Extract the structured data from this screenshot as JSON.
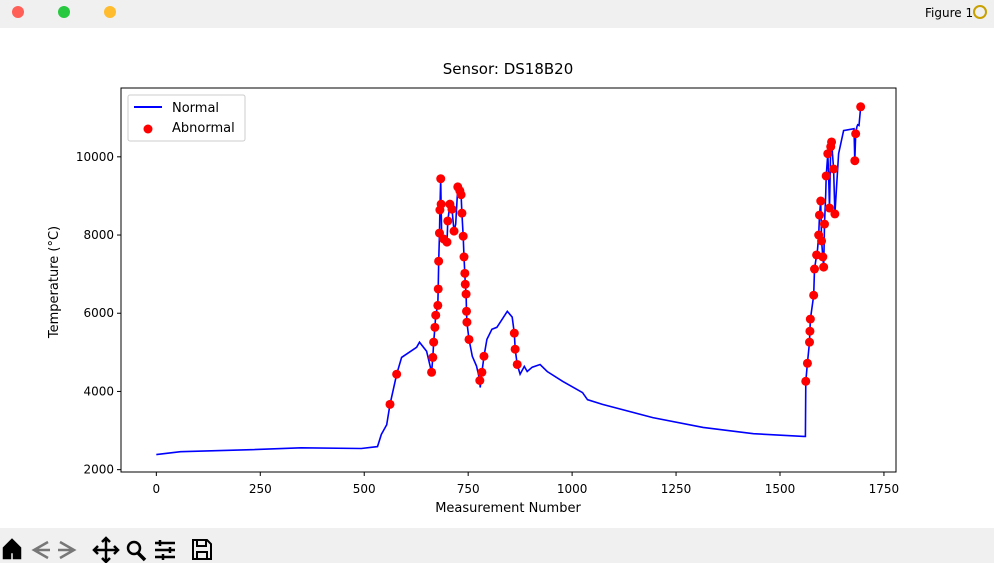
{
  "window": {
    "title": "Figure 1"
  },
  "chart_data": {
    "type": "line",
    "title": "Sensor: DS18B20",
    "x_label": "Measurement Number",
    "y_label": "Temperature (°C)",
    "xlim": [
      -85,
      1779
    ],
    "ylim": [
      1940,
      11760
    ],
    "xticks": [
      0,
      250,
      500,
      750,
      1000,
      1250,
      1500,
      1750
    ],
    "yticks": [
      2000,
      4000,
      6000,
      8000,
      10000
    ],
    "legend": "upper left",
    "series": [
      {
        "name": "Normal",
        "type": "line",
        "color": "#0000ff",
        "x": [
          0,
          58,
          227,
          348,
          493,
          532,
          541,
          554,
          562,
          578,
          590,
          626,
          633,
          650,
          662,
          665,
          667,
          670,
          672,
          677,
          678,
          679,
          681,
          682,
          684,
          685,
          686,
          691,
          699,
          701,
          706,
          711,
          716,
          720,
          725,
          730,
          733,
          735,
          738,
          740,
          742,
          743,
          745,
          746,
          747,
          752,
          760,
          770,
          778,
          779,
          783,
          788,
          795,
          807,
          819,
          832,
          844,
          856,
          861,
          863,
          868,
          875,
          885,
          892,
          904,
          923,
          940,
          977,
          1025,
          1037,
          1073,
          1194,
          1315,
          1436,
          1557,
          1561,
          1562,
          1566,
          1571,
          1572,
          1573,
          1581,
          1583,
          1588,
          1590,
          1593,
          1595,
          1598,
          1600,
          1603,
          1605,
          1607,
          1610,
          1611,
          1615,
          1617,
          1619,
          1622,
          1624,
          1629,
          1632,
          1641,
          1653,
          1678,
          1680,
          1682,
          1685,
          1687,
          1690,
          1694
        ],
        "values": [
          2385,
          2460,
          2510,
          2560,
          2540,
          2590,
          2900,
          3150,
          3670,
          4440,
          4870,
          5130,
          5260,
          5030,
          4490,
          4870,
          5260,
          5640,
          5950,
          6200,
          6620,
          7330,
          8050,
          8640,
          9440,
          8790,
          8100,
          7900,
          7820,
          8360,
          8790,
          8660,
          8100,
          8280,
          9230,
          9130,
          9030,
          8560,
          7970,
          7440,
          7020,
          6740,
          6490,
          6050,
          5770,
          5330,
          4900,
          4650,
          4280,
          4100,
          4490,
          4900,
          5330,
          5590,
          5640,
          5850,
          6050,
          5900,
          5490,
          5080,
          4690,
          4440,
          4640,
          4510,
          4620,
          4690,
          4510,
          4260,
          3970,
          3790,
          3670,
          3330,
          3080,
          2920,
          2850,
          2850,
          4260,
          4720,
          5260,
          5540,
          5850,
          6460,
          7130,
          7490,
          7590,
          8000,
          8510,
          8870,
          7850,
          7440,
          7180,
          8280,
          9030,
          9510,
          10080,
          9540,
          8690,
          10260,
          10380,
          9690,
          8540,
          10080,
          10670,
          10720,
          9900,
          10590,
          10770,
          10820,
          10800,
          11280
        ]
      },
      {
        "name": "Abnormal",
        "type": "scatter",
        "color": "#ff0000",
        "x": [
          562,
          578,
          662,
          665,
          667,
          670,
          672,
          677,
          678,
          679,
          681,
          682,
          684,
          685,
          691,
          699,
          701,
          706,
          711,
          716,
          725,
          730,
          733,
          735,
          738,
          740,
          742,
          743,
          745,
          746,
          747,
          752,
          778,
          783,
          788,
          861,
          863,
          868,
          1562,
          1566,
          1571,
          1572,
          1573,
          1581,
          1583,
          1588,
          1593,
          1595,
          1598,
          1600,
          1603,
          1605,
          1607,
          1611,
          1615,
          1619,
          1622,
          1624,
          1629,
          1632,
          1680,
          1682,
          1694
        ],
        "values": [
          3670,
          4440,
          4490,
          4870,
          5260,
          5640,
          5950,
          6200,
          6620,
          7330,
          8050,
          8640,
          9440,
          8790,
          7900,
          7820,
          8360,
          8790,
          8660,
          8100,
          9230,
          9130,
          9030,
          8560,
          7970,
          7440,
          7020,
          6740,
          6490,
          6050,
          5770,
          5330,
          4280,
          4490,
          4900,
          5490,
          5080,
          4690,
          4260,
          4720,
          5260,
          5540,
          5850,
          6460,
          7130,
          7490,
          8000,
          8510,
          8870,
          7850,
          7440,
          7180,
          8280,
          9510,
          10080,
          8690,
          10260,
          10380,
          9690,
          8540,
          9900,
          10590,
          11280
        ]
      }
    ]
  }
}
